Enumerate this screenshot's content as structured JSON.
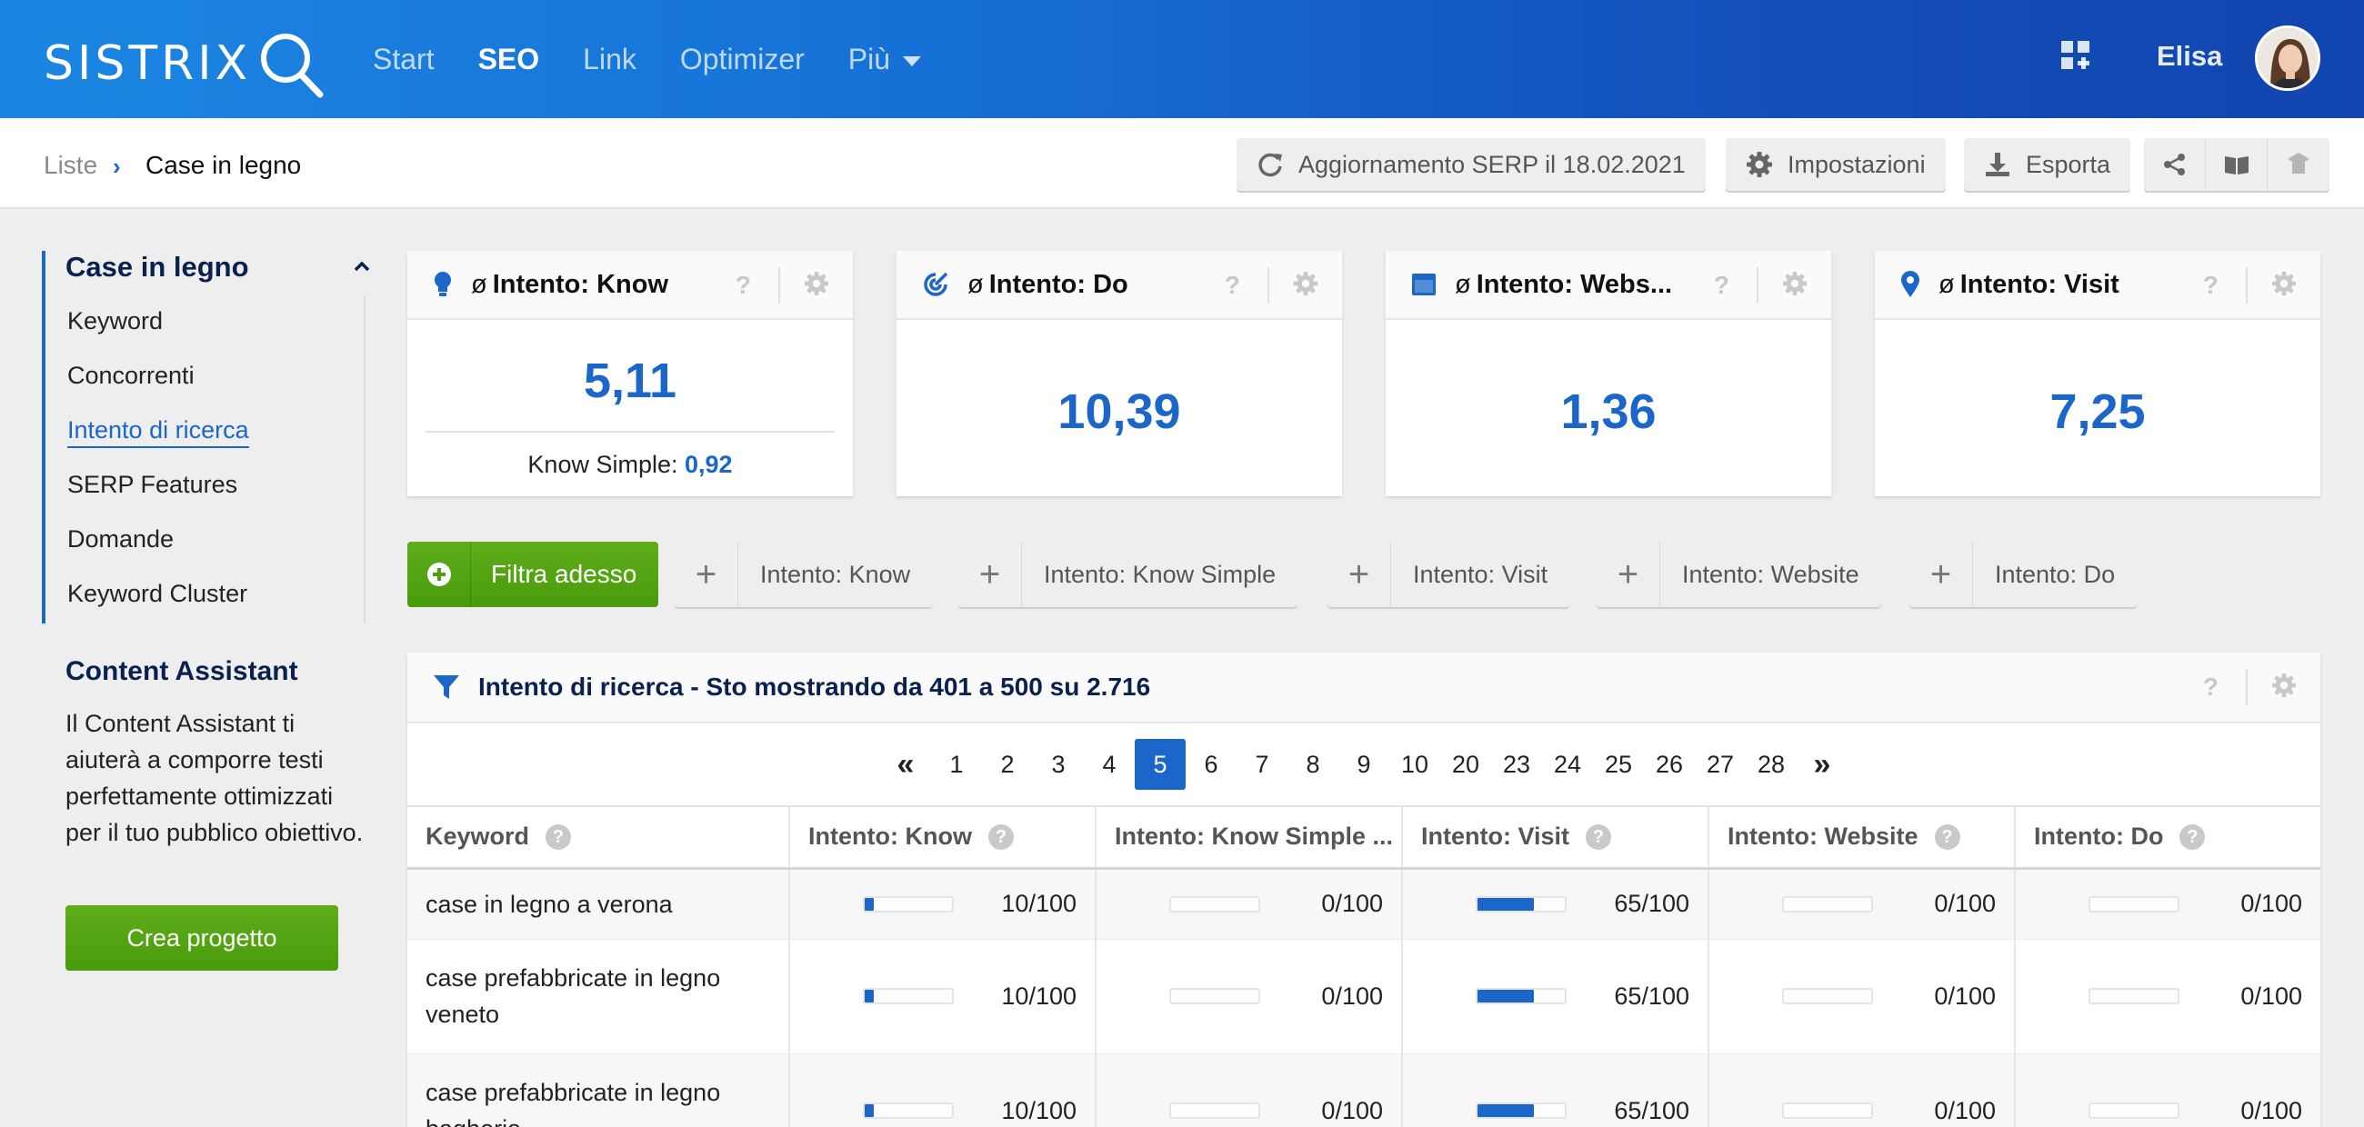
{
  "brand": {
    "logo_text": "SISTRIX"
  },
  "nav": {
    "items": [
      {
        "label": "Start",
        "active": false
      },
      {
        "label": "SEO",
        "active": true
      },
      {
        "label": "Link",
        "active": false
      },
      {
        "label": "Optimizer",
        "active": false
      },
      {
        "label": "Più",
        "active": false
      }
    ],
    "user_name": "Elisa"
  },
  "breadcrumb": {
    "root": "Liste",
    "current": "Case in legno"
  },
  "toolbar": {
    "update_label": "Aggiornamento SERP il 18.02.2021",
    "settings_label": "Impostazioni",
    "export_label": "Esporta"
  },
  "sidebar": {
    "title": "Case in legno",
    "items": [
      {
        "label": "Keyword"
      },
      {
        "label": "Concorrenti"
      },
      {
        "label": "Intento di ricerca"
      },
      {
        "label": "SERP Features"
      },
      {
        "label": "Domande"
      },
      {
        "label": "Keyword Cluster"
      }
    ],
    "active_index": 2,
    "content_assistant": {
      "title": "Content Assistant",
      "text": "Il Content Assistant ti aiuterà a comporre testi perfettamente ottimizzati per il tuo pubblico obiettivo.",
      "button": "Crea progetto"
    }
  },
  "kpis": [
    {
      "phi": "ø",
      "title": "Intento: Know",
      "value": "5,11",
      "sub_label": "Know Simple:",
      "sub_value": "0,92",
      "icon": "lightbulb-icon"
    },
    {
      "phi": "ø",
      "title": "Intento: Do",
      "value": "10,39",
      "icon": "target-icon"
    },
    {
      "phi": "ø",
      "title": "Intento: Webs...",
      "value": "1,36",
      "icon": "browser-window-icon"
    },
    {
      "phi": "ø",
      "title": "Intento: Visit",
      "value": "7,25",
      "icon": "map-pin-icon"
    }
  ],
  "filters": {
    "main": "Filtra adesso",
    "chips": [
      "Intento: Know",
      "Intento: Know Simple",
      "Intento: Visit",
      "Intento: Website",
      "Intento: Do"
    ]
  },
  "table": {
    "title": "Intento di ricerca - Sto mostrando da 401 a 500 su 2.716",
    "pagination": {
      "first": "«",
      "last": "»",
      "pages": [
        "1",
        "2",
        "3",
        "4",
        "5",
        "6",
        "7",
        "8",
        "9",
        "10",
        "20",
        "23",
        "24",
        "25",
        "26",
        "27",
        "28"
      ],
      "current": "5"
    },
    "columns": [
      "Keyword",
      "Intento: Know",
      "Intento: Know Simple ...",
      "Intento: Visit",
      "Intento: Website",
      "Intento: Do"
    ],
    "rows": [
      {
        "keyword": "case in legno a verona",
        "values": [
          "10/100",
          "0/100",
          "65/100",
          "0/100",
          "0/100"
        ],
        "levels": [
          10,
          0,
          65,
          0,
          0
        ]
      },
      {
        "keyword": "case prefabbricate in legno veneto",
        "values": [
          "10/100",
          "0/100",
          "65/100",
          "0/100",
          "0/100"
        ],
        "levels": [
          10,
          0,
          65,
          0,
          0
        ]
      },
      {
        "keyword": "case prefabbricate in legno bagheria",
        "values": [
          "10/100",
          "0/100",
          "65/100",
          "0/100",
          "0/100"
        ],
        "levels": [
          10,
          0,
          65,
          0,
          0
        ]
      }
    ]
  },
  "colors": {
    "accent": "#1b66c9",
    "green": "#519f12",
    "nav_bg": "#1670d6"
  }
}
